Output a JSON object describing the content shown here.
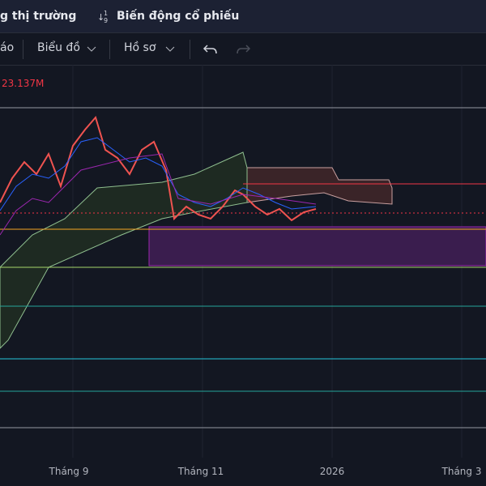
{
  "topbar": {
    "tab1": "g thị trường",
    "tab2": "Biến động cổ phiếu"
  },
  "toolbar": {
    "item1": "áo",
    "item2": "Biểu đồ",
    "item3": "Hồ sơ"
  },
  "chart": {
    "volume_label": "23.137M",
    "x_labels": [
      "Tháng 9",
      "Tháng 11",
      "2026",
      "Tháng 3"
    ]
  }
}
